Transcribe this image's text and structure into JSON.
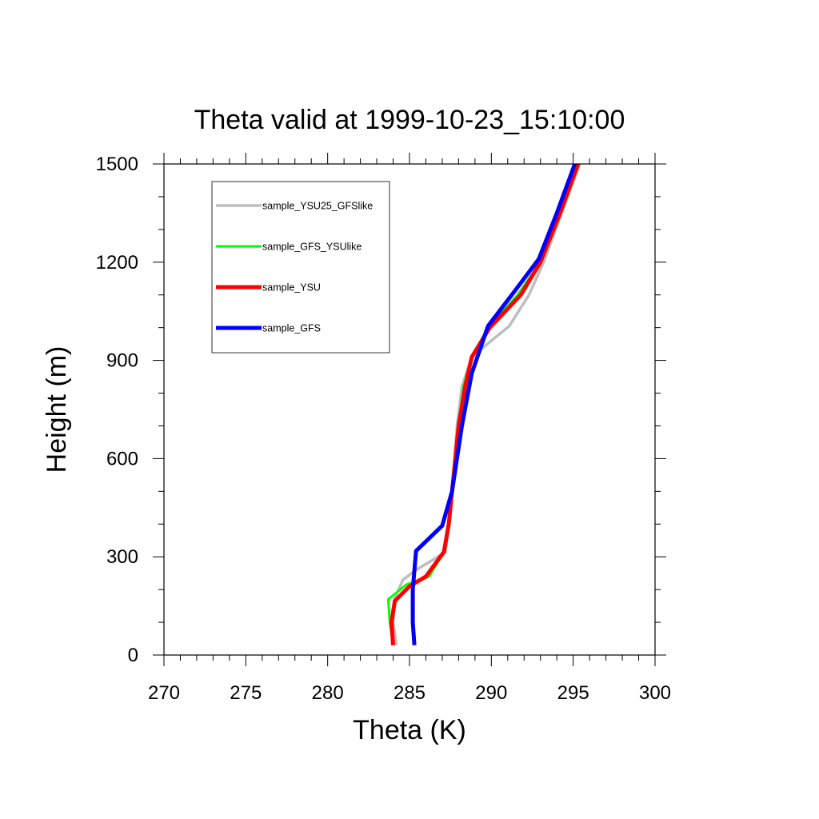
{
  "chart_data": {
    "type": "line",
    "title": "Theta valid at 1999-10-23_15:10:00",
    "xlabel": "Theta (K)",
    "ylabel": "Height (m)",
    "xlim": [
      270,
      300
    ],
    "ylim": [
      0,
      1500
    ],
    "x_ticks": [
      "270",
      "275",
      "280",
      "285",
      "290",
      "295",
      "300"
    ],
    "y_ticks": [
      "0",
      "300",
      "600",
      "900",
      "1200",
      "1500"
    ],
    "grid": false,
    "legend_position": "top-left inside",
    "series": [
      {
        "name": "sample_YSU25_GFSlike",
        "color": "#bebebe",
        "points": [
          [
            284.2,
            30
          ],
          [
            284.0,
            100
          ],
          [
            284.1,
            175
          ],
          [
            284.6,
            230
          ],
          [
            285.4,
            260
          ],
          [
            286.4,
            290
          ],
          [
            287.2,
            315
          ],
          [
            287.4,
            400
          ],
          [
            287.6,
            500
          ],
          [
            287.9,
            700
          ],
          [
            288.2,
            820
          ],
          [
            288.8,
            910
          ],
          [
            290.0,
            960
          ],
          [
            291.1,
            1005
          ],
          [
            292.3,
            1100
          ],
          [
            293.2,
            1200
          ],
          [
            294.3,
            1350
          ],
          [
            295.4,
            1500
          ]
        ]
      },
      {
        "name": "sample_GFS_YSUlike",
        "color": "#00ff00",
        "points": [
          [
            284.0,
            30
          ],
          [
            283.8,
            100
          ],
          [
            283.7,
            170
          ],
          [
            284.8,
            215
          ],
          [
            286.2,
            240
          ],
          [
            287.1,
            315
          ],
          [
            287.4,
            400
          ],
          [
            287.6,
            500
          ],
          [
            288.0,
            700
          ],
          [
            288.3,
            820
          ],
          [
            288.8,
            910
          ],
          [
            289.8,
            1000
          ],
          [
            291.6,
            1100
          ],
          [
            293.0,
            1200
          ],
          [
            294.2,
            1350
          ],
          [
            295.3,
            1500
          ]
        ]
      },
      {
        "name": "sample_YSU",
        "color": "#ff0000",
        "points": [
          [
            284.0,
            30
          ],
          [
            283.9,
            100
          ],
          [
            284.1,
            165
          ],
          [
            285.0,
            210
          ],
          [
            286.0,
            240
          ],
          [
            287.1,
            315
          ],
          [
            287.4,
            400
          ],
          [
            287.6,
            500
          ],
          [
            288.0,
            700
          ],
          [
            288.4,
            820
          ],
          [
            288.8,
            910
          ],
          [
            289.9,
            1000
          ],
          [
            291.8,
            1100
          ],
          [
            293.0,
            1200
          ],
          [
            294.2,
            1350
          ],
          [
            295.3,
            1500
          ]
        ]
      },
      {
        "name": "sample_GFS",
        "color": "#0000ff",
        "points": [
          [
            285.3,
            30
          ],
          [
            285.2,
            100
          ],
          [
            285.2,
            200
          ],
          [
            285.4,
            318
          ],
          [
            287.0,
            395
          ],
          [
            287.6,
            500
          ],
          [
            288.2,
            700
          ],
          [
            288.8,
            860
          ],
          [
            289.8,
            1005
          ],
          [
            291.4,
            1110
          ],
          [
            292.9,
            1210
          ],
          [
            294.0,
            1350
          ],
          [
            295.1,
            1500
          ]
        ]
      }
    ]
  }
}
